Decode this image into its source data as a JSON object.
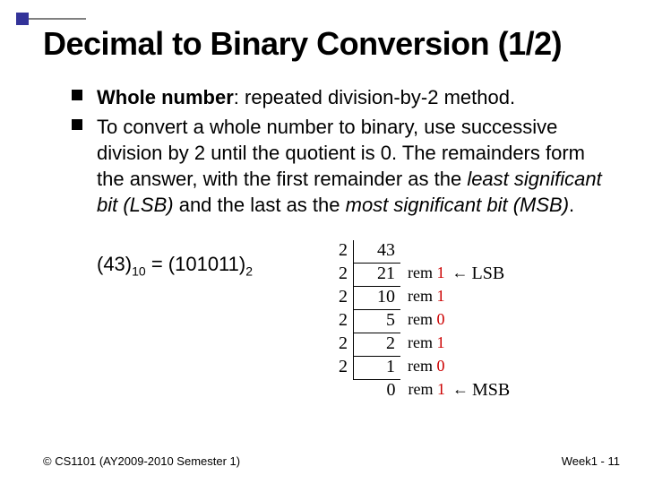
{
  "title": "Decimal to Binary Conversion (1/2)",
  "bullets": {
    "b1_bold": "Whole number",
    "b1_rest": ": repeated division-by-2 method.",
    "b2_a": "To convert a whole number to binary, use ",
    "b2_b": "successive division by 2",
    "b2_c": " until the quotient is 0.  The remainders form the answer, with the first remainder as the ",
    "b2_d": "least significant bit (LSB)",
    "b2_e": " and the last as the ",
    "b2_f": "most significant bit (MSB)",
    "b2_g": "."
  },
  "example": {
    "lhs": "(43)",
    "lhs_sub": "10",
    "eq": " = ",
    "rhs": "(101011)",
    "rhs_sub": "2"
  },
  "steps": [
    {
      "divisor": "2",
      "dividend": "43",
      "rem": "",
      "arrow": "",
      "label": ""
    },
    {
      "divisor": "2",
      "dividend": "21",
      "rem": "1",
      "arrow": "←",
      "label": "LSB"
    },
    {
      "divisor": "2",
      "dividend": "10",
      "rem": "1",
      "arrow": "",
      "label": ""
    },
    {
      "divisor": "2",
      "dividend": "5",
      "rem": "0",
      "arrow": "",
      "label": ""
    },
    {
      "divisor": "2",
      "dividend": "2",
      "rem": "1",
      "arrow": "",
      "label": ""
    },
    {
      "divisor": "2",
      "dividend": "1",
      "rem": "0",
      "arrow": "",
      "label": ""
    },
    {
      "divisor": "",
      "dividend": "0",
      "rem": "1",
      "arrow": "←",
      "label": "MSB"
    }
  ],
  "rem_word": "rem ",
  "footer": {
    "left": "© CS1101 (AY2009-2010 Semester 1)",
    "right": "Week1 - 11"
  },
  "colors": {
    "accent": "#333399",
    "remainder": "#cc0000"
  }
}
